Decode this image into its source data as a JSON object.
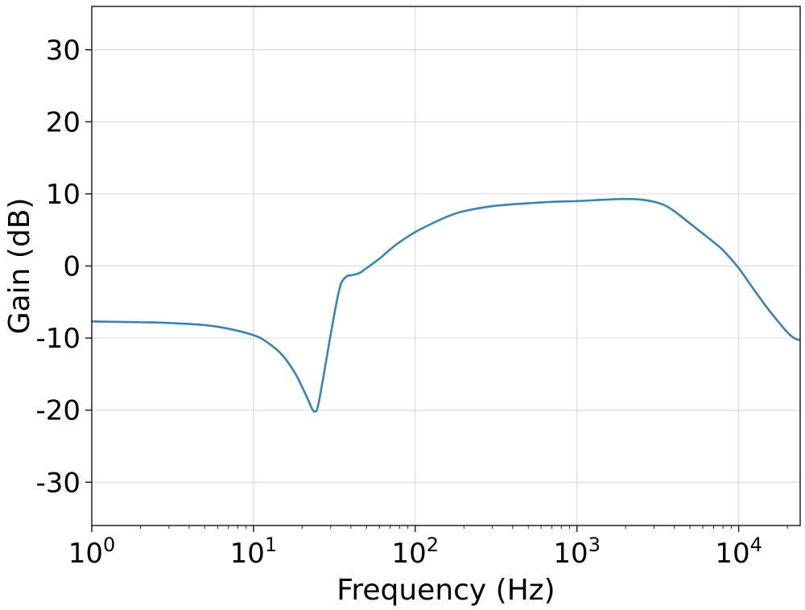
{
  "chart_data": {
    "type": "line",
    "title": "",
    "xlabel": "Frequency (Hz)",
    "ylabel": "Gain (dB)",
    "x_scale": "log",
    "xlim": [
      1,
      24000
    ],
    "ylim": [
      -36,
      36
    ],
    "grid": true,
    "x_ticks": [
      {
        "base": "10",
        "exp": "0",
        "value": 1
      },
      {
        "base": "10",
        "exp": "1",
        "value": 10
      },
      {
        "base": "10",
        "exp": "2",
        "value": 100
      },
      {
        "base": "10",
        "exp": "3",
        "value": 1000
      },
      {
        "base": "10",
        "exp": "4",
        "value": 10000
      }
    ],
    "y_ticks": [
      {
        "label": "30",
        "value": 30
      },
      {
        "label": "20",
        "value": 20
      },
      {
        "label": "10",
        "value": 10
      },
      {
        "label": "0",
        "value": 0
      },
      {
        "label": "-10",
        "value": -10
      },
      {
        "label": "-20",
        "value": -20
      },
      {
        "label": "-30",
        "value": -30
      }
    ],
    "series": [
      {
        "color": "#3a83b5",
        "x": [
          1,
          2,
          3,
          5,
          7,
          10,
          12,
          15,
          18,
          20,
          22,
          23,
          24,
          25,
          27,
          30,
          33,
          35,
          38,
          40,
          45,
          50,
          60,
          70,
          80,
          100,
          130,
          160,
          200,
          300,
          500,
          700,
          1000,
          1500,
          2000,
          2500,
          3000,
          3500,
          4000,
          5000,
          6000,
          7000,
          8000,
          10000,
          12000,
          15000,
          18000,
          20000,
          22000,
          24000
        ],
        "y": [
          -7.7,
          -7.8,
          -7.9,
          -8.2,
          -8.7,
          -9.6,
          -10.5,
          -12.3,
          -14.8,
          -16.8,
          -18.8,
          -19.8,
          -20.2,
          -19.5,
          -15.5,
          -9.5,
          -4.5,
          -2.3,
          -1.4,
          -1.3,
          -1.0,
          -0.3,
          1.0,
          2.3,
          3.3,
          4.7,
          6.0,
          6.9,
          7.6,
          8.3,
          8.7,
          8.9,
          9.0,
          9.2,
          9.3,
          9.2,
          8.9,
          8.4,
          7.6,
          5.9,
          4.5,
          3.3,
          2.2,
          -0.3,
          -2.8,
          -5.8,
          -8.0,
          -9.2,
          -10.0,
          -10.3
        ]
      }
    ]
  }
}
